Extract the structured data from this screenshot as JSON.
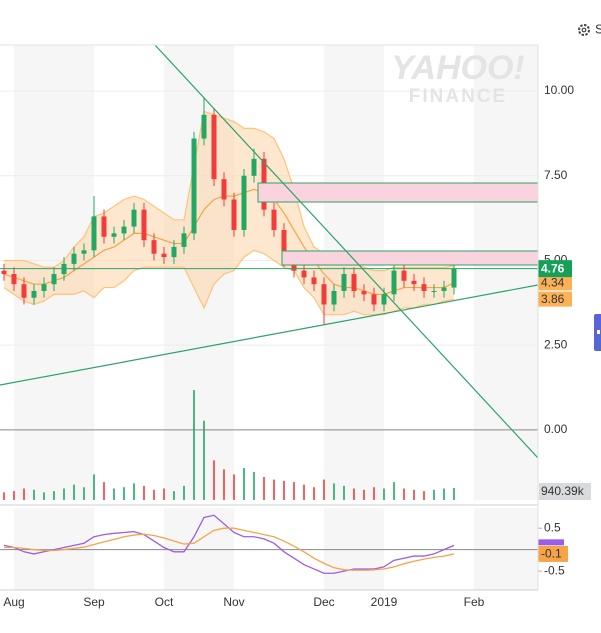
{
  "chart_data": [
    {
      "type": "candlestick",
      "categories": [
        null,
        "Aug",
        null,
        null,
        null,
        null,
        null,
        null,
        null,
        "Sep",
        null,
        null,
        null,
        null,
        null,
        null,
        "Oct",
        null,
        null,
        null,
        null,
        null,
        null,
        "Nov",
        null,
        null,
        null,
        null,
        null,
        null,
        null,
        null,
        "Dec",
        null,
        null,
        null,
        null,
        null,
        "2019",
        null,
        null,
        null,
        null,
        null,
        null,
        null,
        null,
        "Feb",
        null,
        null,
        null,
        null,
        null,
        null
      ],
      "open": [
        4.7,
        4.6,
        4.3,
        3.9,
        4.1,
        4.3,
        4.6,
        4.9,
        5.2,
        5.3,
        6.3,
        5.7,
        5.8,
        6.0,
        6.5,
        5.6,
        5.2,
        5.1,
        5.4,
        5.8,
        8.6,
        9.3,
        7.4,
        6.8,
        5.9,
        7.5,
        8.0,
        6.5,
        5.9,
        5.0,
        4.7,
        4.5,
        4.3,
        3.7,
        4.1,
        4.6,
        4.1,
        4.0,
        3.7,
        4.0,
        4.7,
        4.4,
        4.3,
        4.1,
        4.1,
        4.2,
        null,
        null,
        null,
        null,
        null,
        null,
        null,
        null
      ],
      "high": [
        4.9,
        4.8,
        4.5,
        4.3,
        4.5,
        4.8,
        5.1,
        5.4,
        5.5,
        6.9,
        6.5,
        6.0,
        6.2,
        6.7,
        6.7,
        5.8,
        5.4,
        5.6,
        6.0,
        8.8,
        9.8,
        9.5,
        7.6,
        7.0,
        7.7,
        8.3,
        8.2,
        6.7,
        6.1,
        5.2,
        4.9,
        4.7,
        4.5,
        4.3,
        4.8,
        4.8,
        4.3,
        4.2,
        4.2,
        4.9,
        4.9,
        4.6,
        4.5,
        4.3,
        4.4,
        4.9,
        null,
        null,
        null,
        null,
        null,
        null,
        null,
        null
      ],
      "low": [
        4.4,
        4.1,
        3.7,
        3.7,
        3.9,
        4.1,
        4.4,
        4.7,
        5.0,
        5.1,
        5.5,
        5.5,
        5.6,
        5.8,
        5.4,
        5.0,
        4.9,
        4.9,
        5.2,
        5.6,
        8.4,
        7.2,
        6.6,
        5.7,
        5.7,
        7.3,
        6.3,
        5.7,
        4.8,
        4.5,
        4.3,
        4.1,
        3.1,
        3.5,
        3.9,
        3.9,
        3.8,
        3.5,
        3.5,
        3.8,
        4.2,
        4.1,
        3.9,
        3.9,
        3.9,
        4.0,
        null,
        null,
        null,
        null,
        null,
        null,
        null,
        null
      ],
      "close": [
        4.6,
        4.3,
        3.9,
        4.1,
        4.3,
        4.6,
        4.9,
        5.2,
        5.3,
        6.3,
        5.7,
        5.8,
        6.0,
        6.5,
        5.6,
        5.2,
        5.1,
        5.4,
        5.8,
        8.6,
        9.3,
        7.4,
        6.8,
        5.9,
        7.5,
        8.0,
        6.5,
        5.9,
        5.0,
        4.7,
        4.5,
        4.3,
        3.7,
        4.1,
        4.6,
        4.1,
        4.0,
        3.7,
        4.0,
        4.7,
        4.4,
        4.3,
        4.1,
        4.1,
        4.2,
        4.76,
        null,
        null,
        null,
        null,
        null,
        null,
        null,
        null
      ],
      "up_color": "#22a862",
      "down_color": "#f23b3b",
      "bands": [
        {
          "color": "#ffc37a",
          "values": [
            5.0,
            5.0,
            5.0,
            4.9,
            4.8,
            4.8,
            5.0,
            5.4,
            5.7,
            6.3,
            6.4,
            6.6,
            6.8,
            6.9,
            6.8,
            6.6,
            6.4,
            6.2,
            6.2,
            7.8,
            9.4,
            9.3,
            9.2,
            9.1,
            8.9,
            8.9,
            8.8,
            8.6,
            8.0,
            7.1,
            6.0,
            5.4,
            5.2,
            5.0,
            5.0,
            4.9,
            4.8,
            4.7,
            4.7,
            4.8,
            4.8,
            4.8,
            4.8,
            4.8,
            4.8,
            4.85,
            null,
            null,
            null,
            null,
            null,
            null,
            null,
            null
          ]
        },
        {
          "color": "#f7a448",
          "values": [
            4.6,
            4.5,
            4.4,
            4.3,
            4.3,
            4.4,
            4.5,
            4.7,
            4.9,
            5.1,
            5.3,
            5.4,
            5.6,
            5.8,
            5.8,
            5.7,
            5.6,
            5.5,
            5.5,
            6.0,
            6.5,
            6.8,
            6.9,
            6.9,
            7.0,
            7.1,
            7.0,
            6.8,
            6.4,
            5.9,
            5.4,
            5.0,
            4.6,
            4.3,
            4.2,
            4.2,
            4.1,
            4.0,
            4.0,
            4.1,
            4.2,
            4.2,
            4.2,
            4.2,
            4.2,
            4.34,
            null,
            null,
            null,
            null,
            null,
            null,
            null,
            null
          ]
        },
        {
          "color": "#ffc37a",
          "values": [
            4.2,
            4.0,
            3.8,
            3.7,
            3.8,
            4.0,
            4.0,
            4.0,
            4.1,
            3.9,
            4.2,
            4.2,
            4.4,
            4.7,
            4.8,
            4.8,
            4.8,
            4.8,
            4.8,
            4.2,
            3.6,
            4.3,
            4.6,
            4.7,
            5.1,
            5.3,
            5.2,
            5.0,
            4.8,
            4.7,
            4.2,
            3.9,
            3.4,
            3.4,
            3.4,
            3.5,
            3.4,
            3.4,
            3.4,
            3.5,
            3.6,
            3.6,
            3.7,
            3.7,
            3.8,
            3.86,
            null,
            null,
            null,
            null,
            null,
            null,
            null,
            null
          ]
        }
      ],
      "band_fill": "#fbd3a5",
      "volume": {
        "ylim": [
          0,
          9000000
        ],
        "values": [
          600000,
          700000,
          900000,
          800000,
          600000,
          700000,
          900000,
          1200000,
          1000000,
          2000000,
          1400000,
          900000,
          1000000,
          1300000,
          1100000,
          800000,
          900000,
          700000,
          1100000,
          8600000,
          6200000,
          3100000,
          2400000,
          2000000,
          2500000,
          2200000,
          1800000,
          1600000,
          1500000,
          1400000,
          1200000,
          1000000,
          1600000,
          1300000,
          1100000,
          900000,
          800000,
          1000000,
          900000,
          1400000,
          900000,
          800000,
          700000,
          800000,
          900000,
          940390,
          null,
          null,
          null,
          null,
          null,
          null,
          null,
          null
        ],
        "value_labels": [
          null,
          null,
          null,
          null,
          null,
          null,
          null,
          null,
          null,
          null,
          null,
          null,
          null,
          null,
          null,
          null,
          null,
          null,
          null,
          null,
          null,
          null,
          null,
          null,
          null,
          null,
          null,
          null,
          null,
          null,
          null,
          null,
          null,
          null,
          null,
          null,
          null,
          null,
          null,
          null,
          null,
          null,
          null,
          null,
          null,
          "940.39k",
          null,
          null,
          null,
          null,
          null,
          null,
          null,
          null
        ]
      },
      "ylim": [
        -2.07,
        11.36
      ],
      "yticks": [
        {
          "value": 10,
          "label": "10.00"
        },
        {
          "value": 7.5,
          "label": "7.50"
        },
        {
          "value": 5,
          "label": "5.00"
        },
        {
          "value": 2.5,
          "label": "2.50"
        },
        {
          "value": 0,
          "label": "0.00"
        }
      ],
      "grid": true,
      "watermark": [
        "YAHOO!",
        "FINANCE"
      ]
    },
    {
      "type": "macd",
      "series": [
        {
          "color": "#9b5de5",
          "values": [
            0.1,
            0.05,
            -0.05,
            -0.1,
            -0.05,
            0.0,
            0.05,
            0.1,
            0.15,
            0.3,
            0.35,
            0.38,
            0.4,
            0.42,
            0.35,
            0.2,
            0.05,
            -0.05,
            -0.05,
            0.3,
            0.75,
            0.8,
            0.6,
            0.4,
            0.3,
            0.3,
            0.25,
            0.15,
            -0.05,
            -0.2,
            -0.35,
            -0.45,
            -0.55,
            -0.55,
            -0.5,
            -0.45,
            -0.45,
            -0.45,
            -0.4,
            -0.25,
            -0.2,
            -0.15,
            -0.15,
            -0.1,
            0.0,
            0.1,
            null,
            null,
            null,
            null,
            null,
            null,
            null,
            null
          ]
        },
        {
          "color": "#f7a448",
          "values": [
            0.05,
            0.05,
            0.03,
            0.0,
            -0.02,
            -0.02,
            0.0,
            0.03,
            0.06,
            0.12,
            0.18,
            0.24,
            0.3,
            0.34,
            0.36,
            0.33,
            0.27,
            0.2,
            0.13,
            0.15,
            0.3,
            0.45,
            0.5,
            0.5,
            0.45,
            0.4,
            0.35,
            0.3,
            0.2,
            0.08,
            -0.05,
            -0.2,
            -0.32,
            -0.42,
            -0.47,
            -0.48,
            -0.48,
            -0.47,
            -0.45,
            -0.4,
            -0.33,
            -0.27,
            -0.22,
            -0.18,
            -0.15,
            -0.1,
            null,
            null,
            null,
            null,
            null,
            null,
            null,
            null
          ]
        }
      ],
      "ylim": [
        -0.94,
        0.97
      ],
      "yticks": [
        0.5,
        -0.5
      ]
    }
  ],
  "toolbar": {
    "settings_label": "S"
  }
}
